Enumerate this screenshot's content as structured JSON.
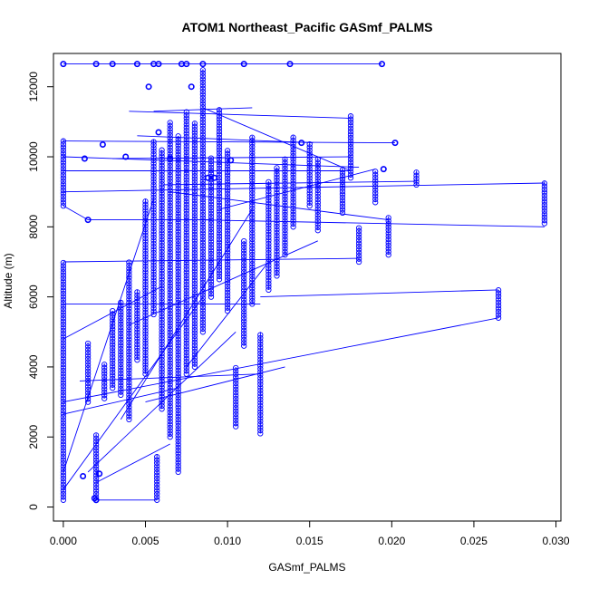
{
  "chart_data": {
    "type": "scatter",
    "title": "ATOM1 Northeast_Pacific GASmf_PALMS",
    "xlabel": "GASmf_PALMS",
    "ylabel": "Altitude (m)",
    "xlim": [
      -0.0006,
      0.0303
    ],
    "ylim": [
      -400,
      12950
    ],
    "x_ticks": [
      0.0,
      0.005,
      0.01,
      0.015,
      0.02,
      0.025,
      0.03
    ],
    "x_tick_labels": [
      "0.000",
      "0.005",
      "0.010",
      "0.015",
      "0.020",
      "0.025",
      "0.030"
    ],
    "y_ticks": [
      0,
      2000,
      4000,
      6000,
      8000,
      10000,
      12000
    ],
    "y_tick_labels": [
      "0",
      "2000",
      "4000",
      "6000",
      "8000",
      "10000",
      "12000"
    ],
    "grid": false,
    "legend": "none",
    "marker": "open-circle",
    "connected": true,
    "color": "#0000ff",
    "profiles": [
      {
        "x": 0.0,
        "y0": 200,
        "y1": 7000
      },
      {
        "x": 0.0,
        "y0": 8600,
        "y1": 10500
      },
      {
        "x": 0.0015,
        "y0": 3000,
        "y1": 4700
      },
      {
        "x": 0.002,
        "y0": 200,
        "y1": 2100
      },
      {
        "x": 0.0025,
        "y0": 3100,
        "y1": 4100
      },
      {
        "x": 0.003,
        "y0": 3400,
        "y1": 5600
      },
      {
        "x": 0.0035,
        "y0": 3200,
        "y1": 5900
      },
      {
        "x": 0.004,
        "y0": 2500,
        "y1": 7000
      },
      {
        "x": 0.0045,
        "y0": 4200,
        "y1": 6200
      },
      {
        "x": 0.005,
        "y0": 3800,
        "y1": 8800
      },
      {
        "x": 0.0055,
        "y0": 5500,
        "y1": 10500
      },
      {
        "x": 0.0057,
        "y0": 200,
        "y1": 1500
      },
      {
        "x": 0.006,
        "y0": 2800,
        "y1": 10200
      },
      {
        "x": 0.0065,
        "y0": 2000,
        "y1": 11000
      },
      {
        "x": 0.007,
        "y0": 1000,
        "y1": 10600
      },
      {
        "x": 0.0075,
        "y0": 3800,
        "y1": 11300
      },
      {
        "x": 0.008,
        "y0": 4000,
        "y1": 11000
      },
      {
        "x": 0.0085,
        "y0": 5000,
        "y1": 12500
      },
      {
        "x": 0.009,
        "y0": 6000,
        "y1": 10000
      },
      {
        "x": 0.0095,
        "y0": 6500,
        "y1": 11400
      },
      {
        "x": 0.01,
        "y0": 5600,
        "y1": 10200
      },
      {
        "x": 0.0105,
        "y0": 2300,
        "y1": 4000
      },
      {
        "x": 0.011,
        "y0": 4600,
        "y1": 7600
      },
      {
        "x": 0.0115,
        "y0": 5800,
        "y1": 10600
      },
      {
        "x": 0.012,
        "y0": 2100,
        "y1": 5000
      },
      {
        "x": 0.0125,
        "y0": 6200,
        "y1": 9300
      },
      {
        "x": 0.013,
        "y0": 6600,
        "y1": 9700
      },
      {
        "x": 0.0135,
        "y0": 7200,
        "y1": 10000
      },
      {
        "x": 0.014,
        "y0": 8000,
        "y1": 10600
      },
      {
        "x": 0.015,
        "y0": 8600,
        "y1": 10400
      },
      {
        "x": 0.0155,
        "y0": 7900,
        "y1": 10000
      },
      {
        "x": 0.017,
        "y0": 8400,
        "y1": 9700
      },
      {
        "x": 0.0175,
        "y0": 9400,
        "y1": 11200
      },
      {
        "x": 0.018,
        "y0": 7000,
        "y1": 8000
      },
      {
        "x": 0.019,
        "y0": 8700,
        "y1": 9600
      },
      {
        "x": 0.0198,
        "y0": 7200,
        "y1": 8300
      },
      {
        "x": 0.0215,
        "y0": 9200,
        "y1": 9600
      },
      {
        "x": 0.0265,
        "y0": 5400,
        "y1": 6200
      },
      {
        "x": 0.0293,
        "y0": 8100,
        "y1": 9300
      }
    ],
    "points": [
      [
        0.0,
        12650
      ],
      [
        0.002,
        12650
      ],
      [
        0.003,
        12650
      ],
      [
        0.0045,
        12650
      ],
      [
        0.0055,
        12650
      ],
      [
        0.0058,
        12650
      ],
      [
        0.0072,
        12650
      ],
      [
        0.0075,
        12650
      ],
      [
        0.0085,
        12650
      ],
      [
        0.011,
        12650
      ],
      [
        0.0138,
        12650
      ],
      [
        0.0194,
        12650
      ],
      [
        0.0052,
        12000
      ],
      [
        0.0078,
        12000
      ],
      [
        0.0013,
        9950
      ],
      [
        0.0024,
        10350
      ],
      [
        0.0038,
        10000
      ],
      [
        0.0058,
        10700
      ],
      [
        0.0088,
        9400
      ],
      [
        0.0092,
        9400
      ],
      [
        0.0202,
        10400
      ],
      [
        0.0195,
        9650
      ],
      [
        0.0022,
        950
      ],
      [
        0.0012,
        880
      ],
      [
        0.0019,
        250
      ],
      [
        0.002,
        200
      ],
      [
        0.0015,
        8200
      ],
      [
        0.0065,
        9950
      ],
      [
        0.0102,
        9900
      ],
      [
        0.0145,
        10400
      ]
    ],
    "segments": [
      [
        [
          0.0,
          12650
        ],
        [
          0.0194,
          12650
        ]
      ],
      [
        [
          0.0,
          10450
        ],
        [
          0.0202,
          10400
        ]
      ],
      [
        [
          0.0,
          10000
        ],
        [
          0.018,
          9700
        ]
      ],
      [
        [
          0.0,
          9600
        ],
        [
          0.0175,
          9600
        ]
      ],
      [
        [
          0.0,
          9000
        ],
        [
          0.0293,
          9250
        ]
      ],
      [
        [
          0.0,
          7000
        ],
        [
          0.018,
          7100
        ]
      ],
      [
        [
          0.0,
          5800
        ],
        [
          0.012,
          5800
        ]
      ],
      [
        [
          0.0,
          3000
        ],
        [
          0.0265,
          5400
        ]
      ],
      [
        [
          0.0,
          2650
        ],
        [
          0.007,
          3400
        ]
      ],
      [
        [
          0.0,
          1000
        ],
        [
          0.0055,
          8800
        ]
      ],
      [
        [
          0.0,
          500
        ],
        [
          0.0085,
          6000
        ]
      ],
      [
        [
          0.0,
          4800
        ],
        [
          0.006,
          6300
        ]
      ],
      [
        [
          0.002,
          200
        ],
        [
          0.0057,
          200
        ]
      ],
      [
        [
          0.002,
          700
        ],
        [
          0.0065,
          1800
        ]
      ],
      [
        [
          0.0,
          8600
        ],
        [
          0.0015,
          8200
        ],
        [
          0.009,
          8200
        ]
      ],
      [
        [
          0.0083,
          8200
        ],
        [
          0.0293,
          8000
        ]
      ],
      [
        [
          0.012,
          6000
        ],
        [
          0.0265,
          6200
        ]
      ],
      [
        [
          0.006,
          9200
        ],
        [
          0.0215,
          9300
        ]
      ],
      [
        [
          0.004,
          11300
        ],
        [
          0.0175,
          11100
        ]
      ],
      [
        [
          0.0055,
          11300
        ],
        [
          0.0115,
          11400
        ]
      ],
      [
        [
          0.0085,
          11400
        ],
        [
          0.0175,
          9600
        ]
      ],
      [
        [
          0.0045,
          10600
        ],
        [
          0.0152,
          10400
        ]
      ],
      [
        [
          0.003,
          9950
        ],
        [
          0.0175,
          10000
        ]
      ],
      [
        [
          0.0095,
          8500
        ],
        [
          0.019,
          9650
        ]
      ],
      [
        [
          0.0075,
          4000
        ],
        [
          0.0125,
          7000
        ]
      ],
      [
        [
          0.0035,
          2500
        ],
        [
          0.0115,
          8500
        ]
      ],
      [
        [
          0.0015,
          1000
        ],
        [
          0.0105,
          5000
        ]
      ],
      [
        [
          0.0065,
          9000
        ],
        [
          0.0198,
          8200
        ]
      ],
      [
        [
          0.005,
          3000
        ],
        [
          0.0135,
          4000
        ]
      ],
      [
        [
          0.004,
          5200
        ],
        [
          0.0155,
          7600
        ]
      ],
      [
        [
          0.001,
          3600
        ],
        [
          0.012,
          3800
        ]
      ]
    ]
  }
}
